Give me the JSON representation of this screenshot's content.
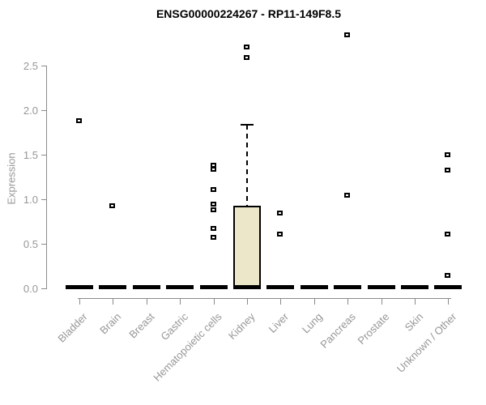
{
  "chart_data": {
    "type": "boxplot",
    "title": "ENSG00000224267 - RP11-149F8.5",
    "xlabel": "",
    "ylabel": "Expression",
    "ylim": [
      0,
      2.9
    ],
    "y_ticks": [
      "0.0",
      "0.5",
      "1.0",
      "1.5",
      "2.0",
      "2.5"
    ],
    "grid": false,
    "legend": null,
    "categories": [
      "Bladder",
      "Brain",
      "Breast",
      "Gastric",
      "Hematopoietic cells",
      "Kidney",
      "Liver",
      "Lung",
      "Pancreas",
      "Prostate",
      "Skin",
      "Unknown / Other"
    ],
    "boxes": [
      {
        "category": "Bladder",
        "q1": 0,
        "median": 0,
        "q3": 0,
        "whisker_low": 0,
        "whisker_high": 0,
        "outliers": [
          1.88
        ]
      },
      {
        "category": "Brain",
        "q1": 0,
        "median": 0,
        "q3": 0,
        "whisker_low": 0,
        "whisker_high": 0,
        "outliers": [
          0.93
        ]
      },
      {
        "category": "Breast",
        "q1": 0,
        "median": 0,
        "q3": 0,
        "whisker_low": 0,
        "whisker_high": 0,
        "outliers": []
      },
      {
        "category": "Gastric",
        "q1": 0,
        "median": 0,
        "q3": 0,
        "whisker_low": 0,
        "whisker_high": 0,
        "outliers": []
      },
      {
        "category": "Hematopoietic cells",
        "q1": 0,
        "median": 0,
        "q3": 0,
        "whisker_low": 0,
        "whisker_high": 0,
        "outliers": [
          1.38,
          1.34,
          1.11,
          0.95,
          0.88,
          0.67,
          0.57
        ]
      },
      {
        "category": "Kidney",
        "q1": 0,
        "median": 0.02,
        "q3": 0.93,
        "whisker_low": 0,
        "whisker_high": 1.84,
        "outliers": [
          2.71,
          2.59
        ]
      },
      {
        "category": "Liver",
        "q1": 0,
        "median": 0,
        "q3": 0,
        "whisker_low": 0,
        "whisker_high": 0,
        "outliers": [
          0.85,
          0.61
        ]
      },
      {
        "category": "Lung",
        "q1": 0,
        "median": 0,
        "q3": 0,
        "whisker_low": 0,
        "whisker_high": 0,
        "outliers": []
      },
      {
        "category": "Pancreas",
        "q1": 0,
        "median": 0,
        "q3": 0,
        "whisker_low": 0,
        "whisker_high": 0,
        "outliers": [
          2.85,
          1.05
        ]
      },
      {
        "category": "Prostate",
        "q1": 0,
        "median": 0,
        "q3": 0,
        "whisker_low": 0,
        "whisker_high": 0,
        "outliers": []
      },
      {
        "category": "Skin",
        "q1": 0,
        "median": 0,
        "q3": 0,
        "whisker_low": 0,
        "whisker_high": 0,
        "outliers": []
      },
      {
        "category": "Unknown / Other",
        "q1": 0,
        "median": 0,
        "q3": 0,
        "whisker_low": 0,
        "whisker_high": 0,
        "outliers": [
          1.5,
          1.33,
          0.61,
          0.15
        ]
      }
    ],
    "colors": {
      "box_fill": "#ece7c8",
      "box_border": "#000000",
      "outlier": "#000000",
      "axis": "#8b8b8b",
      "tick_label": "#979797",
      "title": "#000000",
      "background": "#ffffff"
    }
  }
}
